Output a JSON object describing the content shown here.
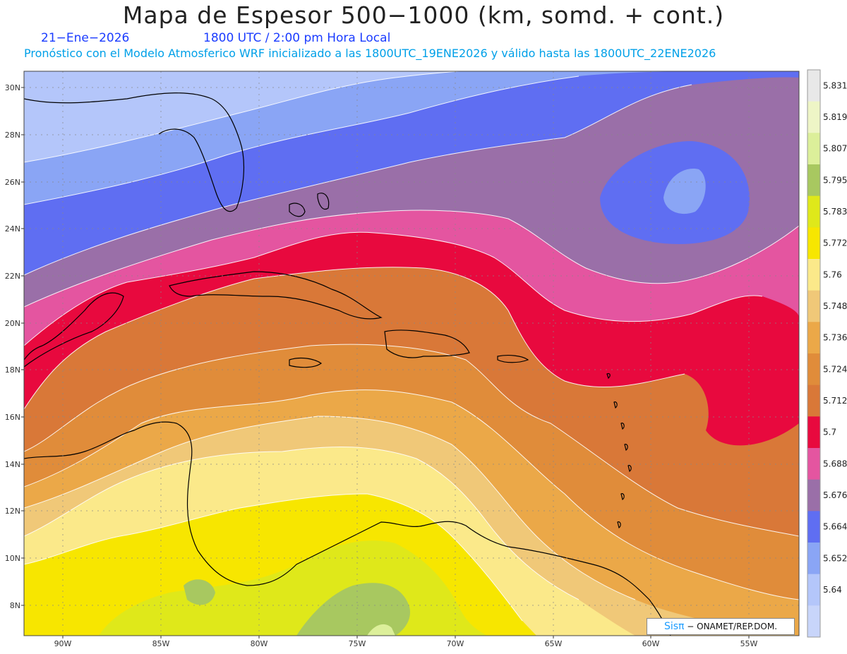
{
  "header": {
    "title": "Mapa de Espesor 500−1000 (km, somd. + cont.)",
    "date": "21−Ene−2026",
    "time": "1800 UTC / 2:00 pm Hora Local",
    "forecast_note": "Pronóstico con el Modelo Atmosferico WRF inicializado a las 1800UTC_19ENE2026 y válido hasta las  1800UTC_22ENE2026"
  },
  "map": {
    "lat_labels": [
      "30N",
      "28N",
      "26N",
      "24N",
      "22N",
      "20N",
      "18N",
      "16N",
      "14N",
      "12N",
      "10N",
      "8N"
    ],
    "lon_labels": [
      "90W",
      "85W",
      "80W",
      "75W",
      "70W",
      "65W",
      "60W",
      "55W"
    ]
  },
  "colorbar": {
    "levels": [
      "5.831",
      "5.819",
      "5.807",
      "5.795",
      "5.783",
      "5.772",
      "5.76",
      "5.748",
      "5.736",
      "5.724",
      "5.712",
      "5.7",
      "5.688",
      "5.676",
      "5.664",
      "5.652",
      "5.64"
    ],
    "colors": [
      "#e8e8e8",
      "#eef5c6",
      "#dcef9a",
      "#a8c860",
      "#dfe81a",
      "#f7e600",
      "#fbe98a",
      "#f0c878",
      "#eba848",
      "#e08c3a",
      "#d97838",
      "#e8093e",
      "#e455a0",
      "#9a6fa8",
      "#5f6ef2",
      "#8aa5f5",
      "#b4c6fa",
      "#c8d5fa"
    ]
  },
  "credit": {
    "logo": "Sisπ",
    "text": " − ONAMET/REP.DOM."
  }
}
